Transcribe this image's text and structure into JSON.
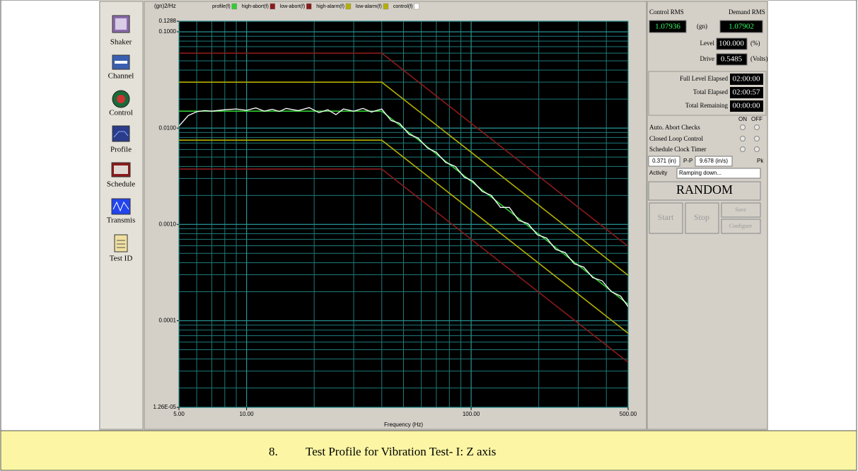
{
  "toolbar": [
    "Shaker",
    "Channel",
    "Control",
    "Profile",
    "Schedule",
    "Transmis",
    "Test ID"
  ],
  "chart_data": {
    "type": "line",
    "y_label": "(gn)2/Hz",
    "x_label": "Frequency (Hz)",
    "xscale": "log",
    "yscale": "log",
    "grid": true,
    "legend": "top",
    "xlim": [
      5,
      500
    ],
    "ylim": [
      1.26e-05,
      0.1288
    ],
    "xticks": [
      {
        "value": 5,
        "label": "5.00"
      },
      {
        "value": 10,
        "label": "10.00"
      },
      {
        "value": 100,
        "label": "100.00"
      },
      {
        "value": 500,
        "label": "500.00"
      }
    ],
    "yticks": [
      {
        "value": 0.1288,
        "label": "0.1288"
      },
      {
        "value": 0.1,
        "label": "0.1000"
      },
      {
        "value": 0.01,
        "label": "0.0100"
      },
      {
        "value": 0.001,
        "label": "0.0010"
      },
      {
        "value": 0.0001,
        "label": "0.0001"
      },
      {
        "value": 1.26e-05,
        "label": "1.26E-05"
      }
    ],
    "series": [
      {
        "name": "profile(f)",
        "color": "#33cc33",
        "x": [
          5,
          40,
          500
        ],
        "values": [
          0.015,
          0.015,
          0.000148
        ]
      },
      {
        "name": "high-abort(f)",
        "color": "#8b1a1a",
        "x": [
          5,
          40,
          500
        ],
        "values": [
          0.06,
          0.06,
          0.000592
        ]
      },
      {
        "name": "low-abort(f)",
        "color": "#8b1a1a",
        "x": [
          5,
          40,
          500
        ],
        "values": [
          0.00375,
          0.00375,
          3.7e-05
        ]
      },
      {
        "name": "high-alarm(f)",
        "color": "#b5b000",
        "x": [
          5,
          40,
          500
        ],
        "values": [
          0.03,
          0.03,
          0.000296
        ]
      },
      {
        "name": "low-alarm(f)",
        "color": "#b5b000",
        "x": [
          5,
          40,
          500
        ],
        "values": [
          0.0075,
          0.0075,
          7.4e-05
        ]
      },
      {
        "name": "control(f)",
        "color": "#ffffff",
        "x": [
          5,
          5.5,
          6,
          6.5,
          7,
          8,
          9,
          10,
          11,
          12,
          13,
          14,
          15,
          17,
          19,
          21,
          23,
          25,
          27,
          30,
          33,
          36,
          40,
          44,
          48,
          53,
          58,
          64,
          70,
          77,
          85,
          93,
          102,
          112,
          123,
          135,
          148,
          163,
          179,
          197,
          217,
          238,
          262,
          288,
          317,
          348,
          383,
          421,
          463,
          500
        ],
        "values": [
          0.0105,
          0.0135,
          0.0148,
          0.0152,
          0.015,
          0.0155,
          0.0158,
          0.0153,
          0.0162,
          0.015,
          0.0157,
          0.0149,
          0.016,
          0.0152,
          0.0163,
          0.0145,
          0.0155,
          0.0138,
          0.0158,
          0.015,
          0.016,
          0.0147,
          0.0158,
          0.012,
          0.0112,
          0.0086,
          0.0079,
          0.0062,
          0.0056,
          0.0044,
          0.004,
          0.0031,
          0.0028,
          0.0022,
          0.002,
          0.0015,
          0.0015,
          0.0011,
          0.00102,
          0.00078,
          0.00072,
          0.00055,
          0.00051,
          0.00039,
          0.00036,
          0.00028,
          0.00026,
          0.0002,
          0.00018,
          0.00014
        ]
      }
    ]
  },
  "panel": {
    "control_rms_label": "Control RMS",
    "demand_rms_label": "Demand RMS",
    "control_rms": "1.07936",
    "rms_unit": "(gn)",
    "demand_rms": "1.07902",
    "level_label": "Level",
    "level": "100.000",
    "level_unit": "(%)",
    "drive_label": "Drive",
    "drive": "0.5485",
    "drive_unit": "(Volts)",
    "timers": [
      {
        "label": "Full Level Elapsed",
        "value": "02:00:00"
      },
      {
        "label": "Total Elapsed",
        "value": "02:00:57"
      },
      {
        "label": "Total Remaining",
        "value": "00:00:00"
      }
    ],
    "on": "ON",
    "off": "OFF",
    "checks": [
      "Auto. Abort Checks",
      "Closed Loop Control",
      "Schedule Clock Timer"
    ],
    "displacement": "0.371 (in)",
    "pp": "P-P",
    "velocity": "9.678 (in/s)",
    "pk": "Pk",
    "activity_label": "Activity",
    "activity": "Ramping down...",
    "mode": "RANDOM",
    "buttons": [
      "Start",
      "Stop",
      "Save",
      "Configure"
    ]
  },
  "caption": {
    "number": "8.",
    "text": "Test Profile for Vibration Test- I: Z axis"
  }
}
